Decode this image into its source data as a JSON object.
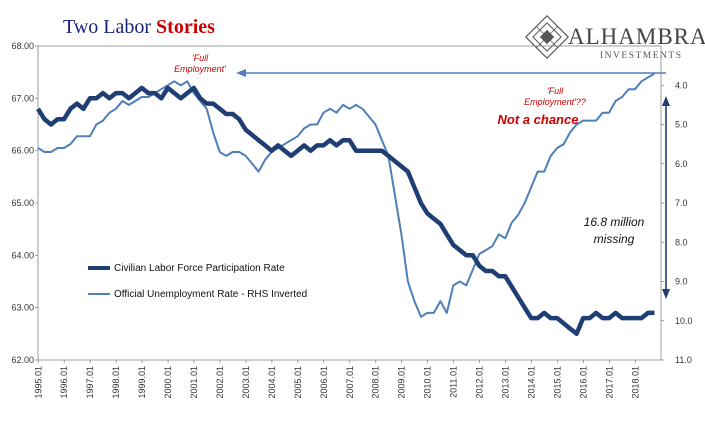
{
  "title": {
    "part1": "Two Labor ",
    "part2": "Stories"
  },
  "logo": {
    "name": "ALHAMBRA",
    "sub": "INVESTMENTS"
  },
  "colors": {
    "lfpr": "#1f3e73",
    "unemp": "#4f7fb9",
    "title_dark": "#1a237e",
    "title_accent": "#cc0000",
    "annotation": "#cc0000",
    "arrow": "#4f7fb9",
    "missing_arrow": "#1f3e73"
  },
  "annotations": {
    "full_employment_left": [
      "'Full",
      "Employment'"
    ],
    "full_employment_right": [
      "'Full",
      "Employment'??"
    ],
    "not_a_chance": "Not a chance",
    "missing": [
      "16.8 million",
      "missing"
    ]
  },
  "chart_data": {
    "type": "line",
    "title": "Two Labor Stories",
    "xlabel": "",
    "x_ticks": [
      "1995.01",
      "1996.01",
      "1997.01",
      "1998.01",
      "1999.01",
      "2000.01",
      "2001.01",
      "2002.01",
      "2003.01",
      "2004.01",
      "2005.01",
      "2006.01",
      "2007.01",
      "2008.01",
      "2009.01",
      "2010.01",
      "2011.01",
      "2012.01",
      "2013.01",
      "2014.01",
      "2015.01",
      "2016.01",
      "2017.01",
      "2018.01"
    ],
    "xlim": [
      1995.0,
      2019.0
    ],
    "y_left": {
      "label": "",
      "ylim": [
        62.0,
        68.0
      ],
      "ticks": [
        "62.00",
        "63.00",
        "64.00",
        "65.00",
        "66.00",
        "67.00",
        "68.00"
      ]
    },
    "y_right": {
      "label": "",
      "ylim": [
        3.0,
        11.0
      ],
      "inverted": true,
      "ticks": [
        "4.0",
        "5.0",
        "6.0",
        "7.0",
        "8.0",
        "9.0",
        "10.0",
        "11.0"
      ]
    },
    "legend": {
      "placement": "left-middle"
    },
    "grid": false,
    "series": [
      {
        "name": "Civilian Labor Force Participation Rate",
        "axis": "left",
        "x": [
          1995.0,
          1995.25,
          1995.5,
          1995.75,
          1996.0,
          1996.25,
          1996.5,
          1996.75,
          1997.0,
          1997.25,
          1997.5,
          1997.75,
          1998.0,
          1998.25,
          1998.5,
          1998.75,
          1999.0,
          1999.25,
          1999.5,
          1999.75,
          2000.0,
          2000.25,
          2000.5,
          2000.75,
          2001.0,
          2001.25,
          2001.5,
          2001.75,
          2002.0,
          2002.25,
          2002.5,
          2002.75,
          2003.0,
          2003.25,
          2003.5,
          2003.75,
          2004.0,
          2004.25,
          2004.5,
          2004.75,
          2005.0,
          2005.25,
          2005.5,
          2005.75,
          2006.0,
          2006.25,
          2006.5,
          2006.75,
          2007.0,
          2007.25,
          2007.5,
          2007.75,
          2008.0,
          2008.25,
          2008.5,
          2008.75,
          2009.0,
          2009.25,
          2009.5,
          2009.75,
          2010.0,
          2010.25,
          2010.5,
          2010.75,
          2011.0,
          2011.25,
          2011.5,
          2011.75,
          2012.0,
          2012.25,
          2012.5,
          2012.75,
          2013.0,
          2013.25,
          2013.5,
          2013.75,
          2014.0,
          2014.25,
          2014.5,
          2014.75,
          2015.0,
          2015.25,
          2015.5,
          2015.75,
          2016.0,
          2016.25,
          2016.5,
          2016.75,
          2017.0,
          2017.25,
          2017.5,
          2017.75,
          2018.0,
          2018.25,
          2018.5,
          2018.75
        ],
        "values": [
          66.8,
          66.6,
          66.5,
          66.6,
          66.6,
          66.8,
          66.9,
          66.8,
          67.0,
          67.0,
          67.1,
          67.0,
          67.1,
          67.1,
          67.0,
          67.1,
          67.2,
          67.1,
          67.1,
          67.0,
          67.2,
          67.1,
          67.0,
          67.1,
          67.2,
          67.0,
          66.9,
          66.9,
          66.8,
          66.7,
          66.7,
          66.6,
          66.4,
          66.3,
          66.2,
          66.1,
          66.0,
          66.1,
          66.0,
          65.9,
          66.0,
          66.1,
          66.0,
          66.1,
          66.1,
          66.2,
          66.1,
          66.2,
          66.2,
          66.0,
          66.0,
          66.0,
          66.0,
          66.0,
          65.9,
          65.8,
          65.7,
          65.6,
          65.3,
          65.0,
          64.8,
          64.7,
          64.6,
          64.4,
          64.2,
          64.1,
          64.0,
          64.0,
          63.8,
          63.7,
          63.7,
          63.6,
          63.6,
          63.4,
          63.2,
          63.0,
          62.8,
          62.8,
          62.9,
          62.8,
          62.8,
          62.7,
          62.6,
          62.5,
          62.8,
          62.8,
          62.9,
          62.8,
          62.8,
          62.9,
          62.8,
          62.8,
          62.8,
          62.8,
          62.9,
          62.9
        ]
      },
      {
        "name": "Official Unemployment Rate - RHS Inverted",
        "axis": "right",
        "x": [
          1995.0,
          1995.25,
          1995.5,
          1995.75,
          1996.0,
          1996.25,
          1996.5,
          1996.75,
          1997.0,
          1997.25,
          1997.5,
          1997.75,
          1998.0,
          1998.25,
          1998.5,
          1998.75,
          1999.0,
          1999.25,
          1999.5,
          1999.75,
          2000.0,
          2000.25,
          2000.5,
          2000.75,
          2001.0,
          2001.25,
          2001.5,
          2001.75,
          2002.0,
          2002.25,
          2002.5,
          2002.75,
          2003.0,
          2003.25,
          2003.5,
          2003.75,
          2004.0,
          2004.25,
          2004.5,
          2004.75,
          2005.0,
          2005.25,
          2005.5,
          2005.75,
          2006.0,
          2006.25,
          2006.5,
          2006.75,
          2007.0,
          2007.25,
          2007.5,
          2007.75,
          2008.0,
          2008.25,
          2008.5,
          2008.75,
          2009.0,
          2009.25,
          2009.5,
          2009.75,
          2010.0,
          2010.25,
          2010.5,
          2010.75,
          2011.0,
          2011.25,
          2011.5,
          2011.75,
          2012.0,
          2012.25,
          2012.5,
          2012.75,
          2013.0,
          2013.25,
          2013.5,
          2013.75,
          2014.0,
          2014.25,
          2014.5,
          2014.75,
          2015.0,
          2015.25,
          2015.5,
          2015.75,
          2016.0,
          2016.25,
          2016.5,
          2016.75,
          2017.0,
          2017.25,
          2017.5,
          2017.75,
          2018.0,
          2018.25,
          2018.5,
          2018.75
        ],
        "values": [
          5.6,
          5.7,
          5.7,
          5.6,
          5.6,
          5.5,
          5.3,
          5.3,
          5.3,
          5.0,
          4.9,
          4.7,
          4.6,
          4.4,
          4.5,
          4.4,
          4.3,
          4.3,
          4.2,
          4.1,
          4.0,
          3.9,
          4.0,
          3.9,
          4.2,
          4.4,
          4.6,
          5.2,
          5.7,
          5.8,
          5.7,
          5.7,
          5.8,
          6.0,
          6.2,
          5.9,
          5.7,
          5.6,
          5.5,
          5.4,
          5.3,
          5.1,
          5.0,
          5.0,
          4.7,
          4.6,
          4.7,
          4.5,
          4.6,
          4.5,
          4.6,
          4.8,
          5.0,
          5.4,
          5.8,
          6.8,
          7.8,
          9.0,
          9.5,
          9.9,
          9.8,
          9.8,
          9.5,
          9.8,
          9.1,
          9.0,
          9.1,
          8.7,
          8.3,
          8.2,
          8.1,
          7.8,
          7.9,
          7.5,
          7.3,
          7.0,
          6.6,
          6.2,
          6.2,
          5.8,
          5.6,
          5.5,
          5.2,
          5.0,
          4.9,
          4.9,
          4.9,
          4.7,
          4.7,
          4.4,
          4.3,
          4.1,
          4.1,
          3.9,
          3.8,
          3.7
        ]
      }
    ]
  }
}
